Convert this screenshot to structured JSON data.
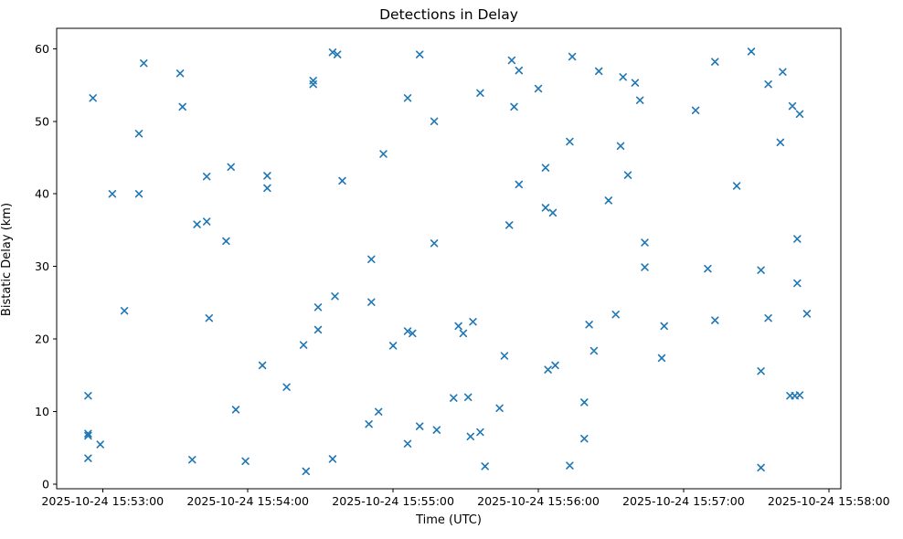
{
  "chart_data": {
    "type": "scatter",
    "title": "Detections in Delay",
    "xlabel": "Time (UTC)",
    "ylabel": "Bistatic Delay (km)",
    "date": "2025-10-24",
    "marker": "x",
    "marker_color": "#1f77b4",
    "axis_color": "#000000",
    "background_color": "#ffffff",
    "grid": false,
    "legend": false,
    "xlim": [
      "15:52:41",
      "15:58:05"
    ],
    "ylim": [
      -0.6,
      62.8
    ],
    "yticks": [
      0,
      10,
      20,
      30,
      40,
      50,
      60
    ],
    "xticks": [
      {
        "time": "15:53:00",
        "label": "2025-10-24 15:53:00"
      },
      {
        "time": "15:54:00",
        "label": "2025-10-24 15:54:00"
      },
      {
        "time": "15:55:00",
        "label": "2025-10-24 15:55:00"
      },
      {
        "time": "15:56:00",
        "label": "2025-10-24 15:56:00"
      },
      {
        "time": "15:57:00",
        "label": "2025-10-24 15:57:00"
      },
      {
        "time": "15:58:00",
        "label": "2025-10-24 15:58:00"
      }
    ],
    "points": [
      [
        "15:53:17",
        58.0
      ],
      [
        "15:53:32",
        56.6
      ],
      [
        "15:52:56",
        53.2
      ],
      [
        "15:53:33",
        52.0
      ],
      [
        "15:53:15",
        48.3
      ],
      [
        "15:53:53",
        43.7
      ],
      [
        "15:53:43",
        42.4
      ],
      [
        "15:53:04",
        40.0
      ],
      [
        "15:53:15",
        40.0
      ],
      [
        "15:53:39",
        35.8
      ],
      [
        "15:53:43",
        36.2
      ],
      [
        "15:53:51",
        33.5
      ],
      [
        "15:53:09",
        23.9
      ],
      [
        "15:53:44",
        22.9
      ],
      [
        "15:52:54",
        12.2
      ],
      [
        "15:53:55",
        10.3
      ],
      [
        "15:52:54",
        7.0
      ],
      [
        "15:52:54",
        6.7
      ],
      [
        "15:52:59",
        5.5
      ],
      [
        "15:52:54",
        3.6
      ],
      [
        "15:53:37",
        3.4
      ],
      [
        "15:53:59",
        3.2
      ],
      [
        "15:54:35",
        59.5
      ],
      [
        "15:54:37",
        59.2
      ],
      [
        "15:55:11",
        59.2
      ],
      [
        "15:54:27",
        55.6
      ],
      [
        "15:54:27",
        55.1
      ],
      [
        "15:55:06",
        53.2
      ],
      [
        "15:55:17",
        50.0
      ],
      [
        "15:54:56",
        45.5
      ],
      [
        "15:54:08",
        42.5
      ],
      [
        "15:54:08",
        40.8
      ],
      [
        "15:54:39",
        41.8
      ],
      [
        "15:55:17",
        33.2
      ],
      [
        "15:54:51",
        31.0
      ],
      [
        "15:54:36",
        25.9
      ],
      [
        "15:54:29",
        24.4
      ],
      [
        "15:54:51",
        25.1
      ],
      [
        "15:54:29",
        21.3
      ],
      [
        "15:54:23",
        19.2
      ],
      [
        "15:55:06",
        21.1
      ],
      [
        "15:55:08",
        20.8
      ],
      [
        "15:55:00",
        19.1
      ],
      [
        "15:54:06",
        16.4
      ],
      [
        "15:54:16",
        13.4
      ],
      [
        "15:54:54",
        10.0
      ],
      [
        "15:54:50",
        8.3
      ],
      [
        "15:55:11",
        8.0
      ],
      [
        "15:55:18",
        7.5
      ],
      [
        "15:55:06",
        5.6
      ],
      [
        "15:54:35",
        3.5
      ],
      [
        "15:54:24",
        1.8
      ],
      [
        "15:55:49",
        58.4
      ],
      [
        "15:55:52",
        57.0
      ],
      [
        "15:56:14",
        58.9
      ],
      [
        "15:56:25",
        56.9
      ],
      [
        "15:56:35",
        56.1
      ],
      [
        "15:56:40",
        55.3
      ],
      [
        "15:55:36",
        53.9
      ],
      [
        "15:56:00",
        54.5
      ],
      [
        "15:56:42",
        52.9
      ],
      [
        "15:55:50",
        52.0
      ],
      [
        "15:56:13",
        47.2
      ],
      [
        "15:56:34",
        46.6
      ],
      [
        "15:56:03",
        43.6
      ],
      [
        "15:56:37",
        42.6
      ],
      [
        "15:55:52",
        41.3
      ],
      [
        "15:56:29",
        39.1
      ],
      [
        "15:56:03",
        38.1
      ],
      [
        "15:56:06",
        37.4
      ],
      [
        "15:55:48",
        35.7
      ],
      [
        "15:55:33",
        22.4
      ],
      [
        "15:55:27",
        21.8
      ],
      [
        "15:55:29",
        20.8
      ],
      [
        "15:56:32",
        23.4
      ],
      [
        "15:56:21",
        22.0
      ],
      [
        "15:56:23",
        18.4
      ],
      [
        "15:55:46",
        17.7
      ],
      [
        "15:56:04",
        15.8
      ],
      [
        "15:56:07",
        16.4
      ],
      [
        "15:55:25",
        11.9
      ],
      [
        "15:55:31",
        12.0
      ],
      [
        "15:55:44",
        10.5
      ],
      [
        "15:56:19",
        11.3
      ],
      [
        "15:55:32",
        6.6
      ],
      [
        "15:55:36",
        7.2
      ],
      [
        "15:56:19",
        6.3
      ],
      [
        "15:55:38",
        2.5
      ],
      [
        "15:56:13",
        2.6
      ],
      [
        "15:57:28",
        59.6
      ],
      [
        "15:57:13",
        58.2
      ],
      [
        "15:57:41",
        56.8
      ],
      [
        "15:57:35",
        55.1
      ],
      [
        "15:57:05",
        51.5
      ],
      [
        "15:57:45",
        52.1
      ],
      [
        "15:57:48",
        51.0
      ],
      [
        "15:57:40",
        47.1
      ],
      [
        "15:57:22",
        41.1
      ],
      [
        "15:56:44",
        33.3
      ],
      [
        "15:57:47",
        33.8
      ],
      [
        "15:56:44",
        29.9
      ],
      [
        "15:57:10",
        29.7
      ],
      [
        "15:57:32",
        29.5
      ],
      [
        "15:57:47",
        27.7
      ],
      [
        "15:56:52",
        21.8
      ],
      [
        "15:57:13",
        22.6
      ],
      [
        "15:57:35",
        22.9
      ],
      [
        "15:57:51",
        23.5
      ],
      [
        "15:56:51",
        17.4
      ],
      [
        "15:57:32",
        15.6
      ],
      [
        "15:57:44",
        12.2
      ],
      [
        "15:57:46",
        12.2
      ],
      [
        "15:57:48",
        12.3
      ],
      [
        "15:57:32",
        2.3
      ]
    ]
  }
}
